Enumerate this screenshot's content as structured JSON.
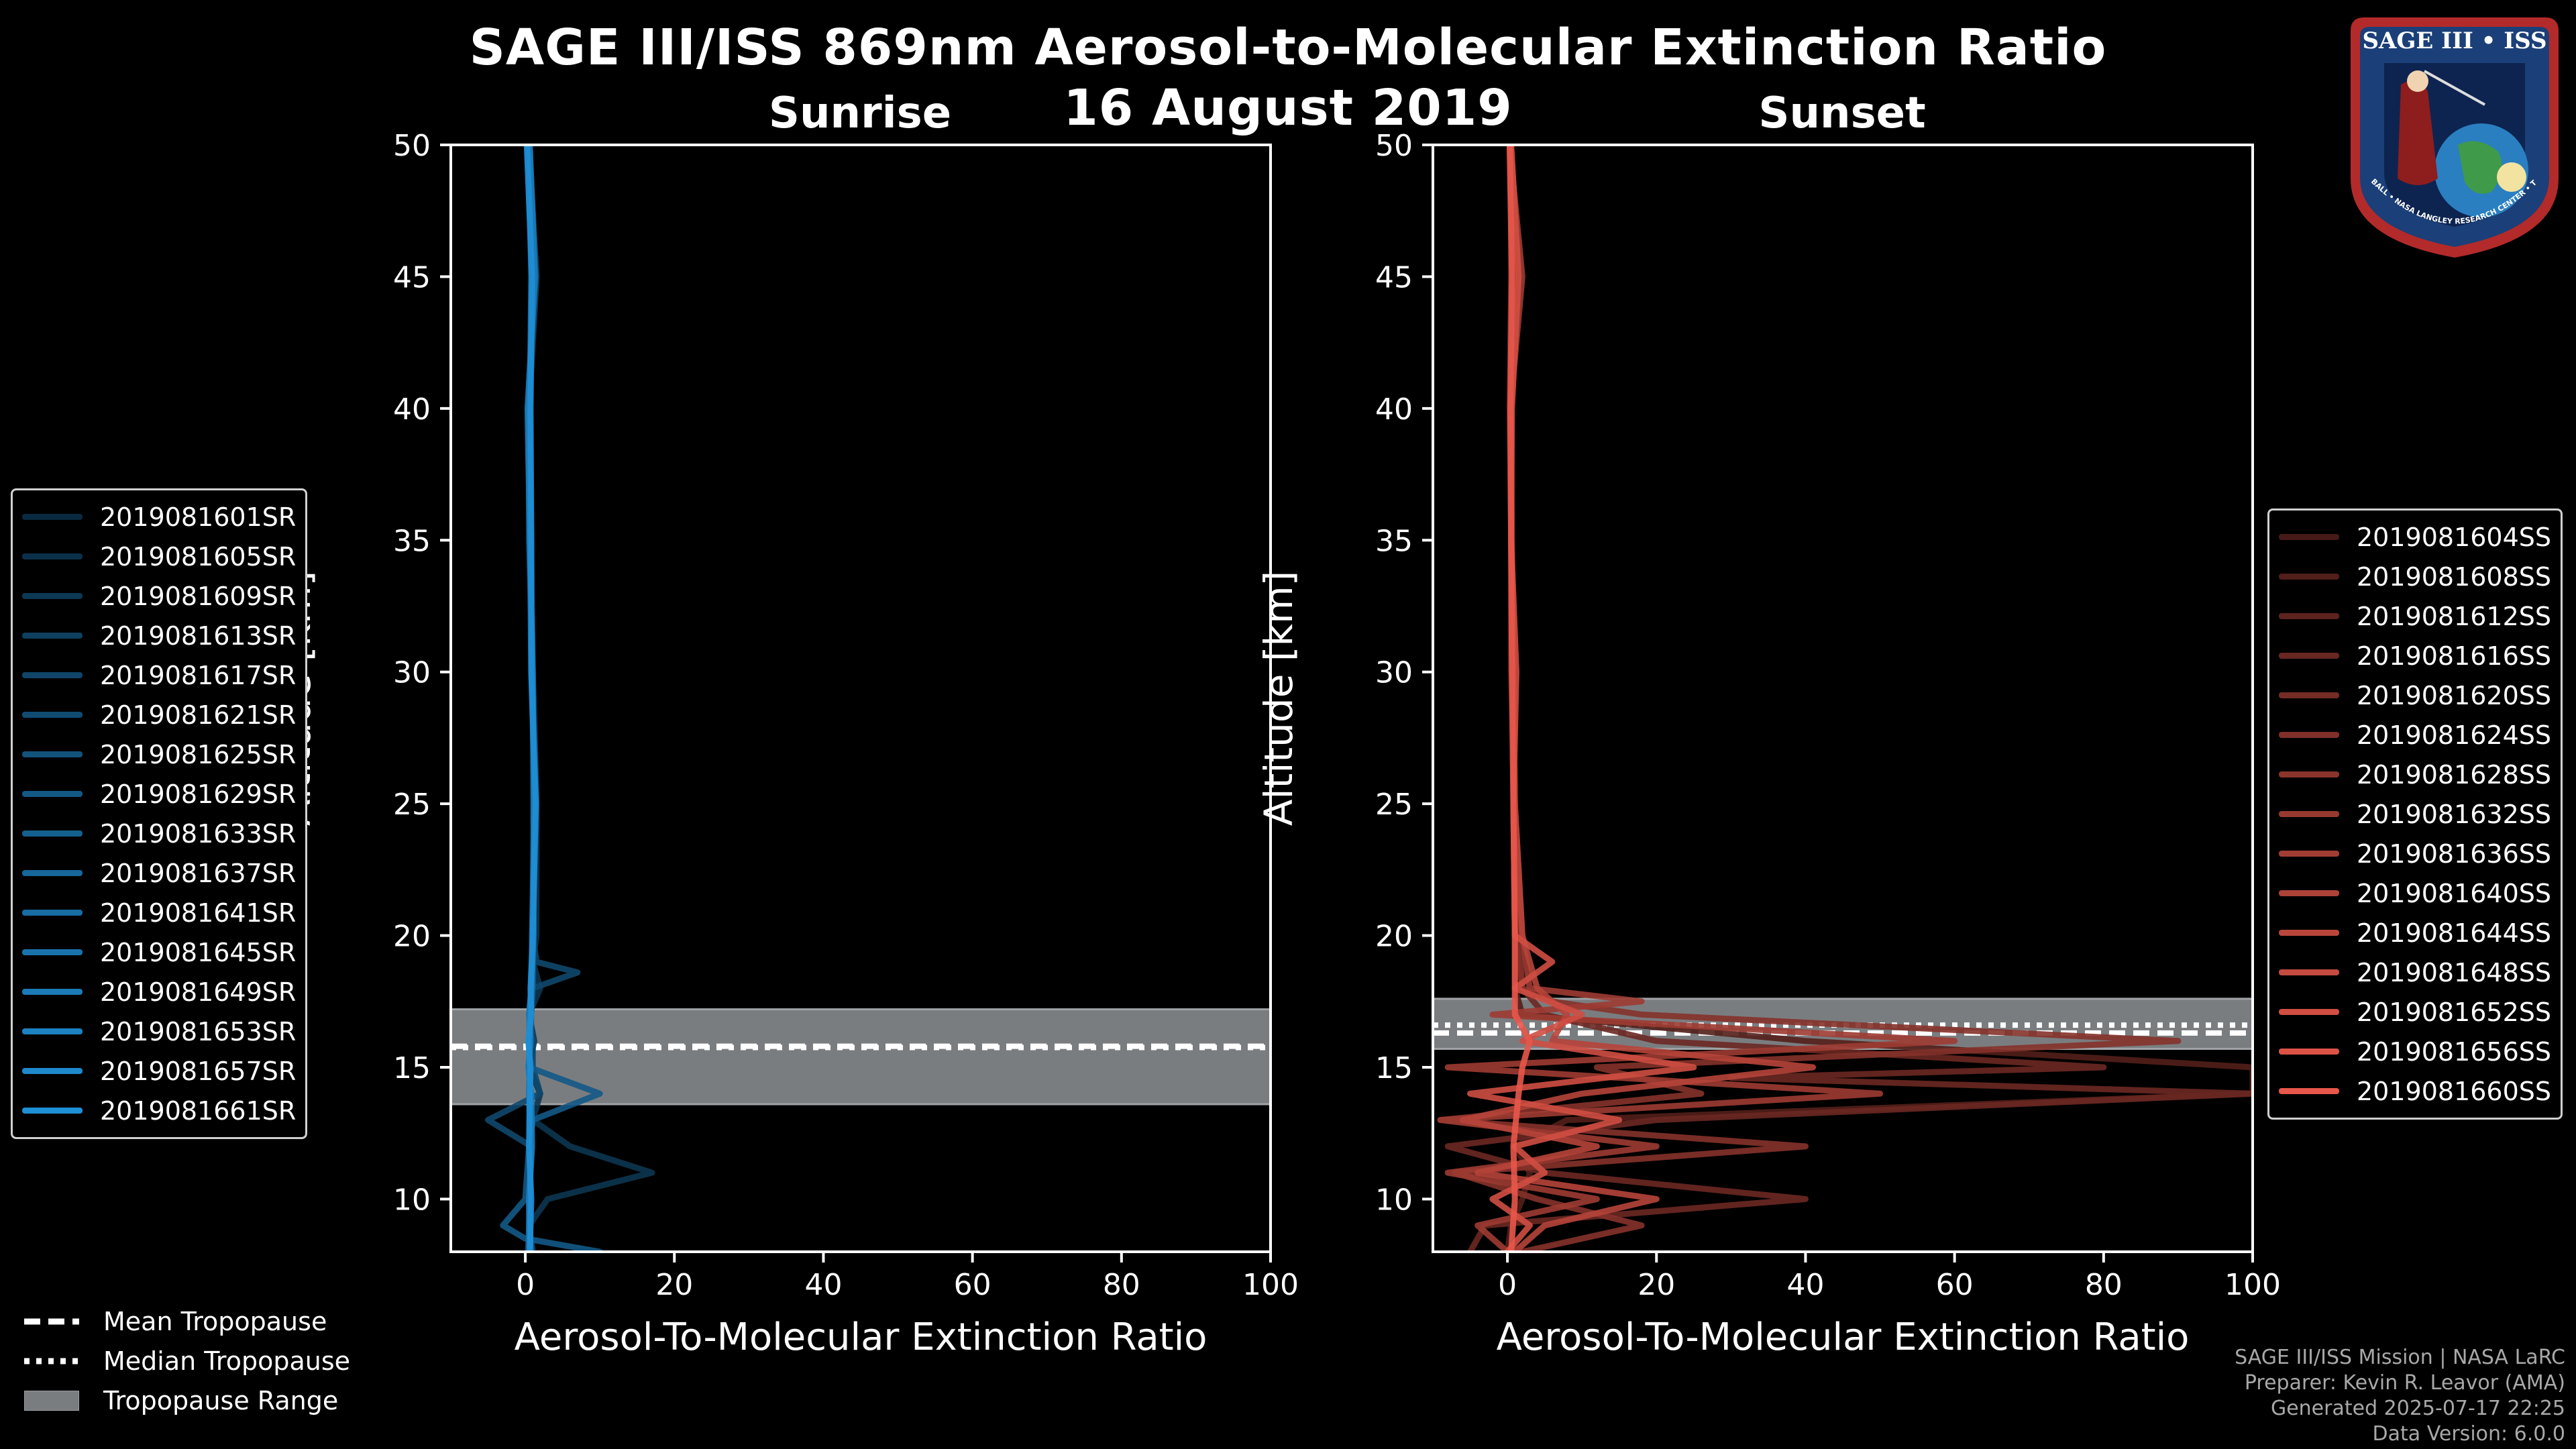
{
  "title": "SAGE III/ISS 869nm Aerosol-to-Molecular Extinction Ratio",
  "date": "16 August 2019",
  "badge": {
    "text": "SAGE III • ISS",
    "ring_text": "BALL • NASA LANGLEY RESEARCH CENTER • TAS-I • ESA"
  },
  "colors": {
    "background": "#000000",
    "sunrise": "#1f8fd6",
    "sunset": "#e8574a",
    "trop_range": "#7a7d80"
  },
  "chart_data": [
    {
      "type": "line",
      "name": "sunrise",
      "title": "Sunrise",
      "xlabel": "Aerosol-To-Molecular Extinction Ratio",
      "ylabel": "Altitude [km]",
      "xlim": [
        -10,
        100
      ],
      "ylim": [
        8,
        50
      ],
      "xticks": [
        0,
        20,
        40,
        60,
        80,
        100
      ],
      "yticks": [
        10,
        15,
        20,
        25,
        30,
        35,
        40,
        45,
        50
      ],
      "tropopause": {
        "mean": 15.8,
        "median": 15.75,
        "range": [
          13.6,
          17.2
        ]
      },
      "legend": [
        "2019081601SR",
        "2019081605SR",
        "2019081609SR",
        "2019081613SR",
        "2019081617SR",
        "2019081621SR",
        "2019081625SR",
        "2019081629SR",
        "2019081633SR",
        "2019081637SR",
        "2019081641SR",
        "2019081645SR",
        "2019081649SR",
        "2019081653SR",
        "2019081657SR",
        "2019081661SR"
      ],
      "series": [
        {
          "alt": [
            8,
            9,
            10,
            11,
            12,
            13,
            14,
            15,
            16,
            17,
            18,
            19,
            20,
            25,
            30,
            35,
            40,
            45,
            50
          ],
          "x": [
            0.8,
            0.5,
            3,
            17,
            6,
            1,
            2,
            0.5,
            1.2,
            0.5,
            2,
            1,
            1.5,
            1.5,
            1,
            0.8,
            0.5,
            1,
            0.5
          ]
        },
        {
          "alt": [
            8,
            9,
            10,
            12,
            13,
            14,
            15,
            16,
            17,
            18,
            18.6,
            19,
            20,
            25,
            30,
            35,
            40,
            45,
            50
          ],
          "x": [
            1,
            0.5,
            0.5,
            0.8,
            -5,
            2,
            1,
            1,
            0.5,
            1,
            7,
            1.5,
            1,
            1.5,
            1,
            0.5,
            0.5,
            1.5,
            0.5
          ]
        },
        {
          "alt": [
            8,
            8.5,
            9,
            10,
            12,
            13,
            14,
            15,
            16,
            17,
            18,
            20,
            25,
            30,
            35,
            40,
            45,
            50
          ],
          "x": [
            10,
            0,
            -3,
            0,
            0.5,
            1,
            10,
            0.5,
            0.7,
            0.8,
            1,
            1,
            1.3,
            0.8,
            0.6,
            0.5,
            1.2,
            0.3
          ]
        },
        {
          "alt": [
            8,
            10,
            12,
            14,
            15,
            16,
            17,
            18,
            20,
            25,
            30,
            35,
            40,
            45,
            50
          ],
          "x": [
            0.4,
            0.6,
            0.7,
            0.5,
            0.6,
            0.5,
            0.6,
            0.9,
            0.9,
            1.2,
            0.9,
            0.7,
            0.6,
            0.8,
            0.4
          ]
        },
        {
          "alt": [
            8,
            10,
            12,
            14,
            15,
            16,
            17,
            18,
            20,
            25,
            30,
            35,
            40,
            45,
            50
          ],
          "x": [
            0.7,
            0.5,
            0.9,
            0.8,
            0.4,
            0.7,
            0.5,
            0.8,
            1.1,
            1.1,
            1.0,
            0.6,
            0.3,
            1.3,
            0.6
          ]
        },
        {
          "alt": [
            8,
            10,
            12,
            14,
            15,
            16,
            17,
            18,
            20,
            25,
            30,
            35,
            40,
            45,
            50
          ],
          "x": [
            0.6,
            0.8,
            0.5,
            0.6,
            0.7,
            0.4,
            0.8,
            0.7,
            1.0,
            1.4,
            0.8,
            0.8,
            0.7,
            0.9,
            0.2
          ]
        }
      ]
    },
    {
      "type": "line",
      "name": "sunset",
      "title": "Sunset",
      "xlabel": "Aerosol-To-Molecular Extinction Ratio",
      "ylabel": "Altitude [km]",
      "xlim": [
        -10,
        100
      ],
      "ylim": [
        8,
        50
      ],
      "xticks": [
        0,
        20,
        40,
        60,
        80,
        100
      ],
      "yticks": [
        10,
        15,
        20,
        25,
        30,
        35,
        40,
        45,
        50
      ],
      "tropopause": {
        "mean": 16.3,
        "median": 16.6,
        "range": [
          15.7,
          17.6
        ]
      },
      "legend": [
        "2019081604SS",
        "2019081608SS",
        "2019081612SS",
        "2019081616SS",
        "2019081620SS",
        "2019081624SS",
        "2019081628SS",
        "2019081632SS",
        "2019081636SS",
        "2019081640SS",
        "2019081644SS",
        "2019081648SS",
        "2019081652SS",
        "2019081656SS",
        "2019081660SS"
      ],
      "series": [
        {
          "alt": [
            8,
            9,
            10,
            11,
            12,
            13,
            14,
            15,
            16,
            17,
            18,
            20,
            25,
            30,
            35,
            40,
            45,
            50
          ],
          "x": [
            0,
            0.5,
            2,
            3,
            1,
            8,
            100,
            100,
            40,
            2,
            1,
            1,
            1,
            0.5,
            0.5,
            0.5,
            1,
            0.5
          ]
        },
        {
          "alt": [
            8,
            9,
            10,
            11,
            12,
            13,
            14,
            14.6,
            15,
            16,
            17,
            18,
            20,
            25,
            30,
            35,
            40,
            45,
            50
          ],
          "x": [
            -5,
            -3,
            40,
            5,
            -8,
            20,
            100,
            30,
            80,
            20,
            5,
            2,
            1,
            0.8,
            0.6,
            0.5,
            0.3,
            0.5,
            0.5
          ]
        },
        {
          "alt": [
            8,
            9,
            10,
            11,
            12,
            13,
            14,
            15,
            16,
            17,
            17.5,
            18,
            20,
            25,
            30,
            35,
            40,
            45,
            50
          ],
          "x": [
            2,
            18,
            4,
            -7,
            40,
            -9,
            26,
            12,
            90,
            18,
            6,
            2,
            1.5,
            1,
            0.8,
            0.6,
            0.5,
            1.5,
            0.5
          ]
        },
        {
          "alt": [
            8,
            9,
            10,
            11,
            12,
            13,
            14,
            15,
            16,
            17,
            17.5,
            18,
            20,
            25,
            30,
            35,
            40,
            45,
            50
          ],
          "x": [
            0,
            -4,
            12,
            -8,
            20,
            -9,
            50,
            -8,
            60,
            -2,
            18,
            3,
            2,
            1,
            0.7,
            0.5,
            0.4,
            2,
            0.3
          ]
        },
        {
          "alt": [
            8,
            9,
            10,
            11,
            12,
            13,
            14,
            15,
            16,
            17,
            18,
            20,
            25,
            30,
            35,
            40,
            45,
            50
          ],
          "x": [
            1,
            5,
            20,
            -4,
            12,
            -6,
            10,
            41,
            6,
            8,
            4,
            2,
            1,
            0.8,
            0.5,
            0.5,
            0.8,
            0.3
          ]
        },
        {
          "alt": [
            8,
            9,
            10,
            11,
            12,
            13,
            14,
            15,
            16,
            17,
            18,
            19,
            20,
            25,
            30,
            35,
            40,
            45,
            50
          ],
          "x": [
            0,
            3,
            -2,
            5,
            1,
            15,
            -5,
            25,
            2,
            10,
            1,
            6,
            1,
            0.8,
            1.2,
            0.5,
            0.6,
            1.5,
            0.5
          ]
        },
        {
          "alt": [
            8,
            10,
            12,
            14,
            15,
            16,
            17,
            18,
            20,
            25,
            30,
            35,
            40,
            45,
            50
          ],
          "x": [
            0.5,
            1,
            0.8,
            1.5,
            2,
            3,
            1,
            1,
            1,
            0.8,
            0.6,
            0.5,
            0.4,
            0.6,
            0.3
          ]
        }
      ]
    }
  ],
  "bottom_legend": {
    "mean": "Mean Tropopause",
    "median": "Median Tropopause",
    "range": "Tropopause Range"
  },
  "footer": {
    "line1": "SAGE III/ISS Mission | NASA LaRC",
    "line2": "Preparer: Kevin R. Leavor (AMA)",
    "line3": "Generated 2025-07-17 22:25",
    "line4": "Data Version: 6.0.0"
  }
}
